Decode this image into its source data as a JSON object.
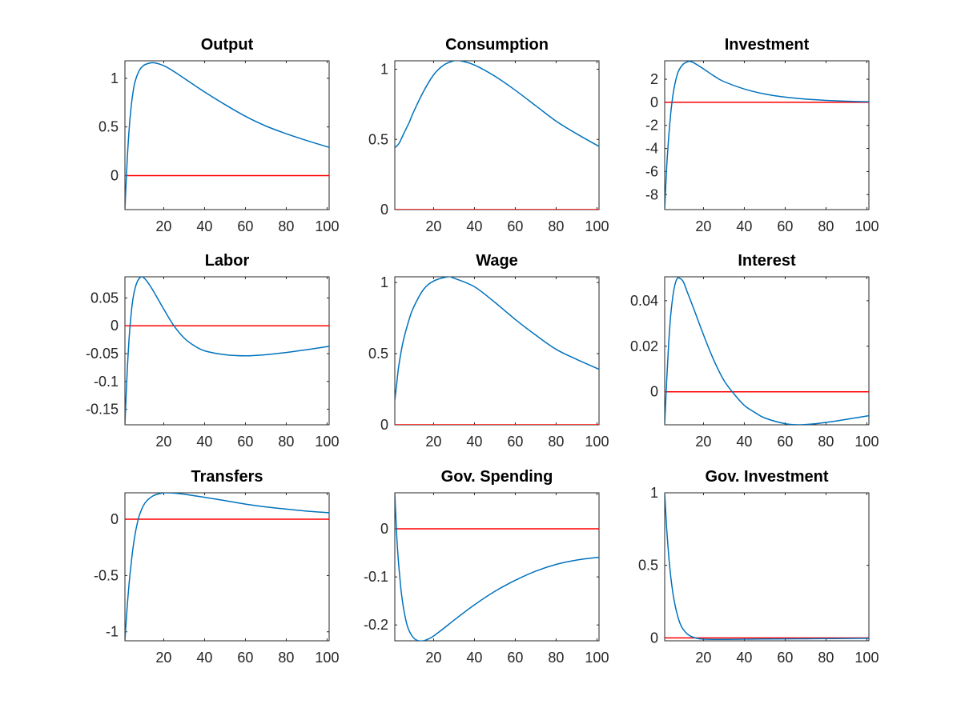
{
  "chart_data": [
    {
      "type": "line",
      "title": "Output",
      "xlim": [
        1,
        101
      ],
      "ylim": [
        -0.35,
        1.18
      ],
      "xticks": [
        20,
        40,
        60,
        80,
        100
      ],
      "yticks": [
        0,
        0.5,
        1
      ],
      "ytick_labels": [
        "0",
        "0.5",
        "1"
      ],
      "colors": {
        "response": "#0072BD",
        "zero": "#FF0000"
      },
      "series": [
        {
          "x": [
            1,
            2,
            3,
            4,
            5,
            6,
            8,
            10,
            12,
            15,
            20,
            25,
            30,
            40,
            50,
            60,
            70,
            80,
            90,
            101
          ],
          "values": [
            -0.35,
            0.12,
            0.46,
            0.7,
            0.86,
            0.97,
            1.08,
            1.13,
            1.15,
            1.16,
            1.13,
            1.07,
            1.0,
            0.86,
            0.73,
            0.61,
            0.51,
            0.43,
            0.36,
            0.29
          ]
        },
        {
          "x": [
            1,
            101
          ],
          "values": [
            0,
            0
          ]
        }
      ]
    },
    {
      "type": "line",
      "title": "Consumption",
      "xlim": [
        1,
        101
      ],
      "ylim": [
        0,
        1.06
      ],
      "xticks": [
        20,
        40,
        60,
        80,
        100
      ],
      "yticks": [
        0,
        0.5,
        1
      ],
      "ytick_labels": [
        "0",
        "0.5",
        "1"
      ],
      "colors": {
        "response": "#0072BD",
        "zero": "#FF0000"
      },
      "series": [
        {
          "x": [
            1,
            3,
            5,
            8,
            10,
            15,
            20,
            25,
            30,
            33,
            40,
            50,
            60,
            70,
            80,
            90,
            101
          ],
          "values": [
            0.44,
            0.47,
            0.53,
            0.62,
            0.69,
            0.84,
            0.96,
            1.03,
            1.06,
            1.06,
            1.03,
            0.95,
            0.85,
            0.74,
            0.63,
            0.54,
            0.45
          ]
        },
        {
          "x": [
            1,
            101
          ],
          "values": [
            0,
            0
          ]
        }
      ]
    },
    {
      "type": "line",
      "title": "Investment",
      "xlim": [
        1,
        101
      ],
      "ylim": [
        -9.3,
        3.6
      ],
      "xticks": [
        20,
        40,
        60,
        80,
        100
      ],
      "yticks": [
        -8,
        -6,
        -4,
        -2,
        0,
        2
      ],
      "ytick_labels": [
        "-8",
        "-6",
        "-4",
        "-2",
        "0",
        "2"
      ],
      "colors": {
        "response": "#0072BD",
        "zero": "#FF0000"
      },
      "series": [
        {
          "x": [
            1,
            2,
            3,
            4,
            5,
            6,
            7,
            8,
            10,
            12,
            13,
            15,
            20,
            25,
            30,
            40,
            50,
            60,
            70,
            80,
            90,
            101
          ],
          "values": [
            -9.3,
            -5.6,
            -2.9,
            -0.9,
            0.6,
            1.6,
            2.3,
            2.8,
            3.3,
            3.5,
            3.55,
            3.45,
            2.9,
            2.3,
            1.8,
            1.15,
            0.72,
            0.45,
            0.28,
            0.17,
            0.1,
            0.05
          ]
        },
        {
          "x": [
            1,
            101
          ],
          "values": [
            0,
            0
          ]
        }
      ]
    },
    {
      "type": "line",
      "title": "Labor",
      "xlim": [
        1,
        101
      ],
      "ylim": [
        -0.178,
        0.088
      ],
      "xticks": [
        20,
        40,
        60,
        80,
        100
      ],
      "yticks": [
        -0.15,
        -0.1,
        -0.05,
        0,
        0.05
      ],
      "ytick_labels": [
        "-0.15",
        "-0.1",
        "-0.05",
        "0",
        "0.05"
      ],
      "colors": {
        "response": "#0072BD",
        "zero": "#FF0000"
      },
      "series": [
        {
          "x": [
            1,
            2,
            3,
            4,
            5,
            6,
            7,
            8,
            9,
            10,
            12,
            15,
            20,
            25,
            30,
            35,
            40,
            50,
            60,
            70,
            80,
            90,
            101
          ],
          "values": [
            -0.178,
            -0.09,
            -0.025,
            0.02,
            0.05,
            0.068,
            0.079,
            0.085,
            0.088,
            0.087,
            0.079,
            0.062,
            0.03,
            0.0,
            -0.022,
            -0.036,
            -0.045,
            -0.052,
            -0.054,
            -0.052,
            -0.048,
            -0.043,
            -0.037
          ]
        },
        {
          "x": [
            1,
            101
          ],
          "values": [
            0,
            0
          ]
        }
      ]
    },
    {
      "type": "line",
      "title": "Wage",
      "xlim": [
        1,
        101
      ],
      "ylim": [
        0,
        1.04
      ],
      "xticks": [
        20,
        40,
        60,
        80,
        100
      ],
      "yticks": [
        0,
        0.5,
        1
      ],
      "ytick_labels": [
        "0",
        "0.5",
        "1"
      ],
      "colors": {
        "response": "#0072BD",
        "zero": "#FF0000"
      },
      "series": [
        {
          "x": [
            1,
            2,
            3,
            5,
            8,
            10,
            15,
            20,
            27,
            30,
            40,
            50,
            60,
            70,
            80,
            90,
            101
          ],
          "values": [
            0.17,
            0.3,
            0.42,
            0.58,
            0.74,
            0.82,
            0.95,
            1.01,
            1.04,
            1.03,
            0.97,
            0.86,
            0.74,
            0.63,
            0.53,
            0.46,
            0.39
          ]
        },
        {
          "x": [
            1,
            101
          ],
          "values": [
            0,
            0
          ]
        }
      ]
    },
    {
      "type": "line",
      "title": "Interest",
      "xlim": [
        1,
        101
      ],
      "ylim": [
        -0.0145,
        0.0505
      ],
      "xticks": [
        20,
        40,
        60,
        80,
        100
      ],
      "yticks": [
        0,
        0.02,
        0.04
      ],
      "ytick_labels": [
        "0",
        "0.02",
        "0.04"
      ],
      "colors": {
        "response": "#0072BD",
        "zero": "#FF0000"
      },
      "series": [
        {
          "x": [
            1,
            2,
            3,
            4,
            5,
            6,
            7,
            8,
            10,
            12,
            15,
            20,
            25,
            30,
            35,
            40,
            45,
            50,
            60,
            67,
            75,
            85,
            101
          ],
          "values": [
            -0.0145,
            0.005,
            0.022,
            0.034,
            0.042,
            0.047,
            0.0495,
            0.05,
            0.0485,
            0.044,
            0.037,
            0.025,
            0.014,
            0.005,
            -0.001,
            -0.006,
            -0.009,
            -0.0115,
            -0.014,
            -0.0145,
            -0.014,
            -0.0128,
            -0.0105
          ]
        },
        {
          "x": [
            1,
            101
          ],
          "values": [
            0,
            0
          ]
        }
      ]
    },
    {
      "type": "line",
      "title": "Transfers",
      "xlim": [
        1,
        101
      ],
      "ylim": [
        -1.08,
        0.235
      ],
      "xticks": [
        20,
        40,
        60,
        80,
        100
      ],
      "yticks": [
        -1,
        -0.5,
        0
      ],
      "ytick_labels": [
        "-1",
        "-0.5",
        "0"
      ],
      "colors": {
        "response": "#0072BD",
        "zero": "#FF0000"
      },
      "series": [
        {
          "x": [
            1,
            2,
            3,
            4,
            5,
            6,
            7,
            8,
            10,
            12,
            15,
            18,
            21,
            25,
            30,
            40,
            50,
            60,
            70,
            80,
            90,
            101
          ],
          "values": [
            -1.08,
            -0.8,
            -0.58,
            -0.4,
            -0.25,
            -0.13,
            -0.04,
            0.03,
            0.12,
            0.17,
            0.21,
            0.228,
            0.235,
            0.232,
            0.222,
            0.195,
            0.165,
            0.135,
            0.11,
            0.09,
            0.072,
            0.058
          ]
        },
        {
          "x": [
            1,
            101
          ],
          "values": [
            0,
            0
          ]
        }
      ]
    },
    {
      "type": "line",
      "title": "Gov. Spending",
      "xlim": [
        1,
        101
      ],
      "ylim": [
        -0.233,
        0.075
      ],
      "xticks": [
        20,
        40,
        60,
        80,
        100
      ],
      "yticks": [
        -0.2,
        -0.1,
        0
      ],
      "ytick_labels": [
        "-0.2",
        "-0.1",
        "0"
      ],
      "colors": {
        "response": "#0072BD",
        "zero": "#FF0000"
      },
      "series": [
        {
          "x": [
            1,
            2,
            3,
            4,
            5,
            6,
            7,
            8,
            10,
            12,
            15,
            18,
            20,
            25,
            30,
            40,
            50,
            60,
            70,
            80,
            90,
            101
          ],
          "values": [
            0.075,
            -0.02,
            -0.08,
            -0.125,
            -0.158,
            -0.182,
            -0.2,
            -0.212,
            -0.226,
            -0.232,
            -0.233,
            -0.228,
            -0.223,
            -0.207,
            -0.19,
            -0.158,
            -0.13,
            -0.107,
            -0.088,
            -0.074,
            -0.065,
            -0.059
          ]
        },
        {
          "x": [
            1,
            101
          ],
          "values": [
            0,
            0
          ]
        }
      ]
    },
    {
      "type": "line",
      "title": "Gov. Investment",
      "xlim": [
        1,
        101
      ],
      "ylim": [
        -0.02,
        1.0
      ],
      "xticks": [
        20,
        40,
        60,
        80,
        100
      ],
      "yticks": [
        0,
        0.5,
        1
      ],
      "ytick_labels": [
        "0",
        "0.5",
        "1"
      ],
      "colors": {
        "response": "#0072BD",
        "zero": "#FF0000"
      },
      "series": [
        {
          "x": [
            1,
            2,
            3,
            4,
            5,
            6,
            7,
            8,
            9,
            10,
            12,
            14,
            16,
            18,
            20,
            25,
            30,
            40,
            50,
            60,
            70,
            80,
            90,
            101
          ],
          "values": [
            1.0,
            0.75,
            0.56,
            0.42,
            0.31,
            0.23,
            0.17,
            0.12,
            0.085,
            0.06,
            0.028,
            0.01,
            0.0,
            -0.006,
            -0.009,
            -0.01,
            -0.01,
            -0.009,
            -0.008,
            -0.007,
            -0.006,
            -0.005,
            -0.004,
            -0.003
          ]
        },
        {
          "x": [
            1,
            101
          ],
          "values": [
            0,
            0
          ]
        }
      ]
    }
  ]
}
